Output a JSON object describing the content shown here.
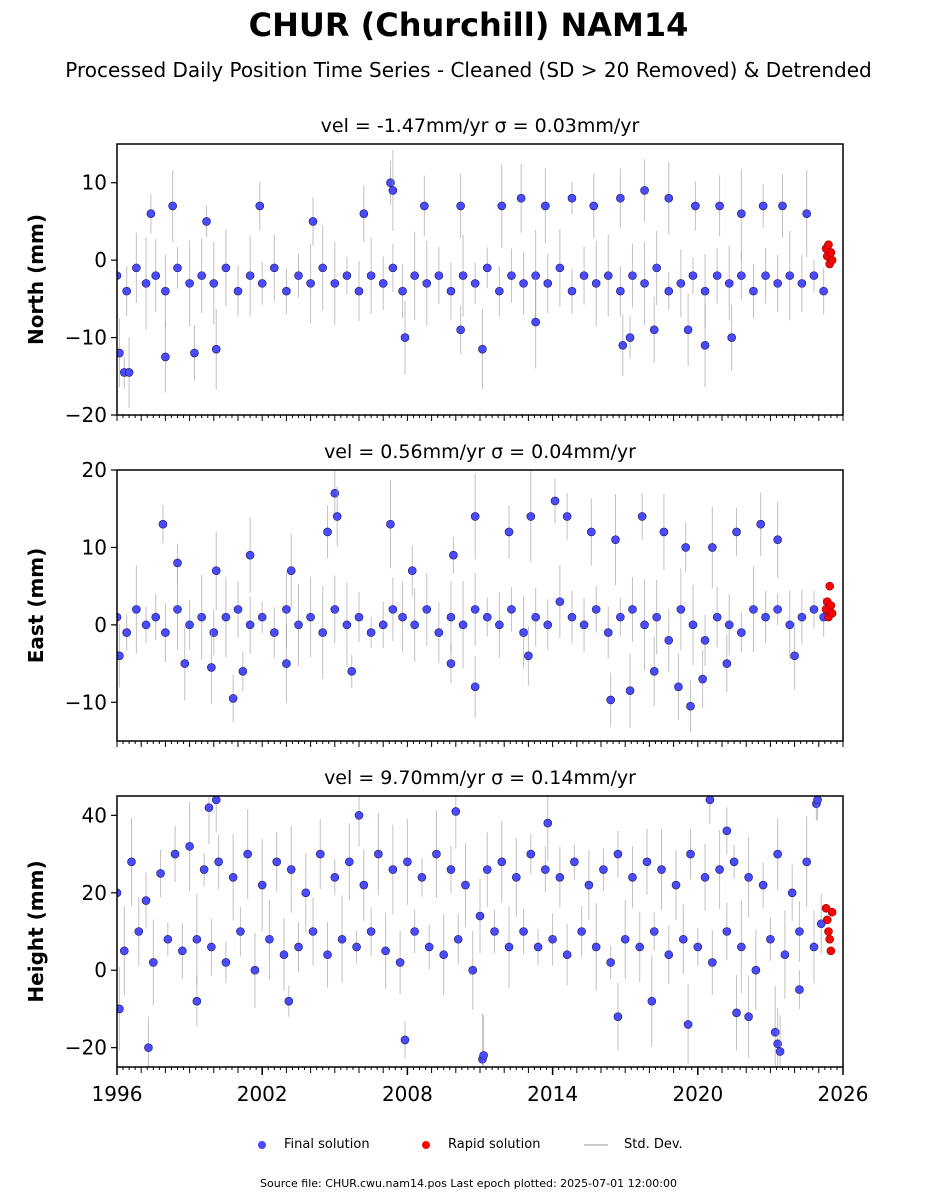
{
  "figure": {
    "title": "CHUR (Churchill) NAM14",
    "subtitle": "Processed Daily Position Time Series - Cleaned (SD > 20 Removed) & Detrended",
    "footer": "Source file: CHUR.cwu.nam14.pos  Last epoch plotted: 2025-07-01 12:00:00"
  },
  "legend": {
    "final": "Final solution",
    "rapid": "Rapid solution",
    "std": "Std. Dev."
  },
  "colors": {
    "final": "#4a4aff",
    "final_edge": "#1a1a5a",
    "rapid": "#ff0000",
    "std": "#999999"
  },
  "chart_data": [
    {
      "type": "scatter",
      "component": "north",
      "panel_title": "vel = -1.47mm/yr   σ = 0.03mm/yr",
      "ylabel": "North (mm)",
      "xlim": [
        1996,
        2026
      ],
      "ylim": [
        -20,
        15
      ],
      "yticks": [
        -20,
        -10,
        0,
        10
      ],
      "ytick_labels": [
        "−20",
        "−10",
        "0",
        "10"
      ],
      "series": [
        {
          "x": [
            1996.0,
            1996.4,
            1996.8,
            1997.2,
            1997.6,
            1998.0,
            1998.5,
            1999.0,
            1999.5,
            2000.0,
            2000.5,
            2001.0,
            2001.5,
            2002.0,
            2002.5,
            2003.0,
            2003.5,
            2004.0,
            2004.5,
            2005.0,
            2005.5,
            2006.0,
            2006.5,
            2007.0,
            2007.4,
            2007.8,
            2008.3,
            2008.8,
            2009.3,
            2009.8,
            2010.3,
            2010.8,
            2011.3,
            2011.8,
            2012.3,
            2012.8,
            2013.3,
            2013.8,
            2014.3,
            2014.8,
            2015.3,
            2015.8,
            2016.3,
            2016.8,
            2017.3,
            2017.8,
            2018.3,
            2018.8,
            2019.3,
            2019.8,
            2020.3,
            2020.8,
            2021.3,
            2021.8,
            2022.3,
            2022.8,
            2023.3,
            2023.8,
            2024.3,
            2024.8,
            2025.2
          ],
          "y": [
            -2,
            -4,
            -1,
            -3,
            -2,
            -4,
            -1,
            -3,
            -2,
            -3,
            -1,
            -4,
            -2,
            -3,
            -1,
            -4,
            -2,
            -3,
            -1,
            -3,
            -2,
            -4,
            -2,
            -3,
            -1,
            -4,
            -2,
            -3,
            -2,
            -4,
            -2,
            -3,
            -1,
            -4,
            -2,
            -3,
            -2,
            -3,
            -1,
            -4,
            -2,
            -3,
            -2,
            -4,
            -2,
            -3,
            -1,
            -4,
            -3,
            -2,
            -4,
            -2,
            -3,
            -2,
            -4,
            -2,
            -3,
            -2,
            -3,
            -2,
            -4
          ]
        },
        {
          "x": [
            1997.4,
            1998.3,
            1999.7,
            2001.9,
            2004.1,
            2006.2,
            2007.3,
            2007.4,
            2008.7,
            2010.2,
            2011.9,
            2012.7,
            2013.7,
            2014.8,
            2015.7,
            2016.8,
            2017.8,
            2018.8,
            2019.9,
            2020.9,
            2021.8,
            2022.7,
            2023.5,
            2024.5
          ],
          "y": [
            6,
            7,
            5,
            7,
            5,
            6,
            10,
            9,
            7,
            7,
            7,
            8,
            7,
            8,
            7,
            8,
            9,
            8,
            7,
            7,
            6,
            7,
            7,
            6
          ]
        },
        {
          "x": [
            1996.1,
            1996.3,
            1996.5,
            1998.0,
            1999.2,
            2000.1,
            2007.9,
            2010.2,
            2011.1,
            2013.3,
            2016.9,
            2017.2,
            2018.2,
            2019.6,
            2020.3,
            2021.4
          ],
          "y": [
            -12,
            -14.5,
            -14.5,
            -12.5,
            -12,
            -11.5,
            -10,
            -9,
            -11.5,
            -8,
            -11,
            -10,
            -9,
            -9,
            -11,
            -10
          ]
        },
        {
          "name": "rapid",
          "x": [
            2025.3,
            2025.35,
            2025.4,
            2025.45,
            2025.5,
            2025.55
          ],
          "y": [
            1.5,
            0.5,
            2,
            -0.5,
            1,
            0
          ]
        }
      ]
    },
    {
      "type": "scatter",
      "component": "east",
      "panel_title": "vel = 0.56mm/yr   σ = 0.04mm/yr",
      "ylabel": "East (mm)",
      "xlim": [
        1996,
        2026
      ],
      "ylim": [
        -15,
        20
      ],
      "yticks": [
        -10,
        0,
        10,
        20
      ],
      "ytick_labels": [
        "−10",
        "0",
        "10",
        "20"
      ],
      "series": [
        {
          "x": [
            1996.0,
            1996.4,
            1996.8,
            1997.2,
            1997.6,
            1998.0,
            1998.5,
            1999.0,
            1999.5,
            2000.0,
            2000.5,
            2001.0,
            2001.5,
            2002.0,
            2002.5,
            2003.0,
            2003.5,
            2004.0,
            2004.5,
            2005.0,
            2005.5,
            2006.0,
            2006.5,
            2007.0,
            2007.4,
            2007.8,
            2008.3,
            2008.8,
            2009.3,
            2009.8,
            2010.3,
            2010.8,
            2011.3,
            2011.8,
            2012.3,
            2012.8,
            2013.3,
            2013.8,
            2014.3,
            2014.8,
            2015.3,
            2015.8,
            2016.3,
            2016.8,
            2017.3,
            2017.8,
            2018.3,
            2018.8,
            2019.3,
            2019.8,
            2020.3,
            2020.8,
            2021.3,
            2021.8,
            2022.3,
            2022.8,
            2023.3,
            2023.8,
            2024.3,
            2024.8,
            2025.2
          ],
          "y": [
            1,
            -1,
            2,
            0,
            1,
            -1,
            2,
            0,
            1,
            -1,
            1,
            2,
            0,
            1,
            -1,
            2,
            0,
            1,
            -1,
            2,
            0,
            1,
            -1,
            0,
            2,
            1,
            0,
            2,
            -1,
            1,
            0,
            2,
            1,
            0,
            2,
            -1,
            1,
            0,
            3,
            1,
            0,
            2,
            -1,
            1,
            2,
            0,
            1,
            -2,
            2,
            0,
            -2,
            1,
            0,
            -1,
            2,
            1,
            2,
            0,
            1,
            2,
            1
          ]
        },
        {
          "x": [
            1997.9,
            1998.5,
            2000.1,
            2001.5,
            2003.2,
            2004.7,
            2005.0,
            2005.1,
            2007.3,
            2008.2,
            2009.9,
            2010.8,
            2012.2,
            2013.1,
            2014.1,
            2014.6,
            2015.6,
            2016.6,
            2017.7,
            2018.6,
            2019.5,
            2020.6,
            2021.6,
            2022.6,
            2023.3
          ],
          "y": [
            13,
            8,
            7,
            9,
            7,
            12,
            17,
            14,
            13,
            7,
            9,
            14,
            12,
            14,
            16,
            14,
            12,
            11,
            14,
            12,
            10,
            10,
            12,
            13,
            11
          ]
        },
        {
          "x": [
            1996.1,
            1998.8,
            1999.9,
            2000.8,
            2001.2,
            2003.0,
            2005.7,
            2009.8,
            2010.8,
            2013.0,
            2016.4,
            2017.2,
            2018.2,
            2019.2,
            2019.7,
            2020.2,
            2021.2,
            2024.0
          ],
          "y": [
            -4,
            -5,
            -5.5,
            -9.5,
            -6,
            -5,
            -6,
            -5,
            -8,
            -4,
            -9.7,
            -8.5,
            -6,
            -8,
            -10.5,
            -7,
            -5,
            -4
          ]
        },
        {
          "name": "rapid",
          "x": [
            2025.3,
            2025.35,
            2025.4,
            2025.45,
            2025.5,
            2025.55
          ],
          "y": [
            2,
            3,
            1,
            5,
            2.5,
            1.5
          ]
        }
      ]
    },
    {
      "type": "scatter",
      "component": "height",
      "panel_title": "vel = 9.70mm/yr   σ = 0.14mm/yr",
      "ylabel": "Height (mm)",
      "xlim": [
        1996,
        2026
      ],
      "ylim": [
        -25,
        45
      ],
      "yticks": [
        -20,
        0,
        20,
        40
      ],
      "ytick_labels": [
        "−20",
        "0",
        "20",
        "40"
      ],
      "xticks": [
        1996,
        2002,
        2008,
        2014,
        2020,
        2026
      ],
      "xtick_labels": [
        "1996",
        "2002",
        "2008",
        "2014",
        "2020",
        "2026"
      ],
      "series": [
        {
          "x": [
            1996.0,
            1996.3,
            1996.6,
            1996.9,
            1997.2,
            1997.5,
            1997.8,
            1998.1,
            1998.4,
            1998.7,
            1999.0,
            1999.3,
            1999.6,
            1999.9,
            2000.2,
            2000.5,
            2000.8,
            2001.1,
            2001.4,
            2001.7,
            2002.0,
            2002.3,
            2002.6,
            2002.9,
            2003.2,
            2003.5,
            2003.8,
            2004.1,
            2004.4,
            2004.7,
            2005.0,
            2005.3,
            2005.6,
            2005.9,
            2006.2,
            2006.5,
            2006.8,
            2007.1,
            2007.4,
            2007.7,
            2008.0,
            2008.3,
            2008.6,
            2008.9,
            2009.2,
            2009.5,
            2009.8,
            2010.1,
            2010.4,
            2010.7,
            2011.0,
            2011.3,
            2011.6,
            2011.9,
            2012.2,
            2012.5,
            2012.8,
            2013.1,
            2013.4,
            2013.7,
            2014.0,
            2014.3,
            2014.6,
            2014.9,
            2015.2,
            2015.5,
            2015.8,
            2016.1,
            2016.4,
            2016.7,
            2017.0,
            2017.3,
            2017.6,
            2017.9,
            2018.2,
            2018.5,
            2018.8,
            2019.1,
            2019.4,
            2019.7,
            2020.0,
            2020.3,
            2020.6,
            2020.9,
            2021.2,
            2021.5,
            2021.8,
            2022.1,
            2022.4,
            2022.7,
            2023.0,
            2023.3,
            2023.6,
            2023.9,
            2024.2,
            2024.5,
            2024.8,
            2025.1
          ],
          "y": [
            20,
            5,
            28,
            10,
            18,
            2,
            25,
            8,
            30,
            5,
            32,
            8,
            26,
            6,
            28,
            2,
            24,
            10,
            30,
            0,
            22,
            8,
            28,
            4,
            26,
            6,
            20,
            10,
            30,
            4,
            24,
            8,
            28,
            6,
            22,
            10,
            30,
            5,
            26,
            2,
            28,
            10,
            24,
            6,
            30,
            4,
            26,
            8,
            22,
            0,
            14,
            26,
            10,
            28,
            6,
            24,
            10,
            30,
            6,
            26,
            8,
            24,
            4,
            28,
            10,
            22,
            6,
            26,
            2,
            30,
            8,
            24,
            6,
            28,
            10,
            26,
            4,
            22,
            8,
            30,
            6,
            24,
            2,
            26,
            10,
            28,
            6,
            24,
            0,
            22,
            8,
            30,
            4,
            20,
            10,
            28,
            6,
            12
          ]
        },
        {
          "x": [
            1999.8,
            2000.1,
            2006.0,
            2010.0,
            2013.8,
            2020.5,
            2021.2,
            2024.9,
            2024.95
          ],
          "y": [
            42,
            44,
            40,
            41,
            38,
            44,
            36,
            43,
            44
          ]
        },
        {
          "x": [
            1996.1,
            1997.3,
            1999.3,
            2003.1,
            2007.9,
            2011.1,
            2011.15,
            2016.7,
            2018.1,
            2019.6,
            2021.6,
            2022.1,
            2023.2,
            2023.3,
            2023.4,
            2024.2
          ],
          "y": [
            -10,
            -20,
            -8,
            -8,
            -18,
            -23,
            -22,
            -12,
            -8,
            -14,
            -11,
            -12,
            -16,
            -19,
            -21,
            -5
          ]
        },
        {
          "name": "rapid",
          "x": [
            2025.3,
            2025.35,
            2025.4,
            2025.45,
            2025.5,
            2025.55
          ],
          "y": [
            16,
            13,
            10,
            8,
            5,
            15
          ]
        }
      ]
    }
  ]
}
